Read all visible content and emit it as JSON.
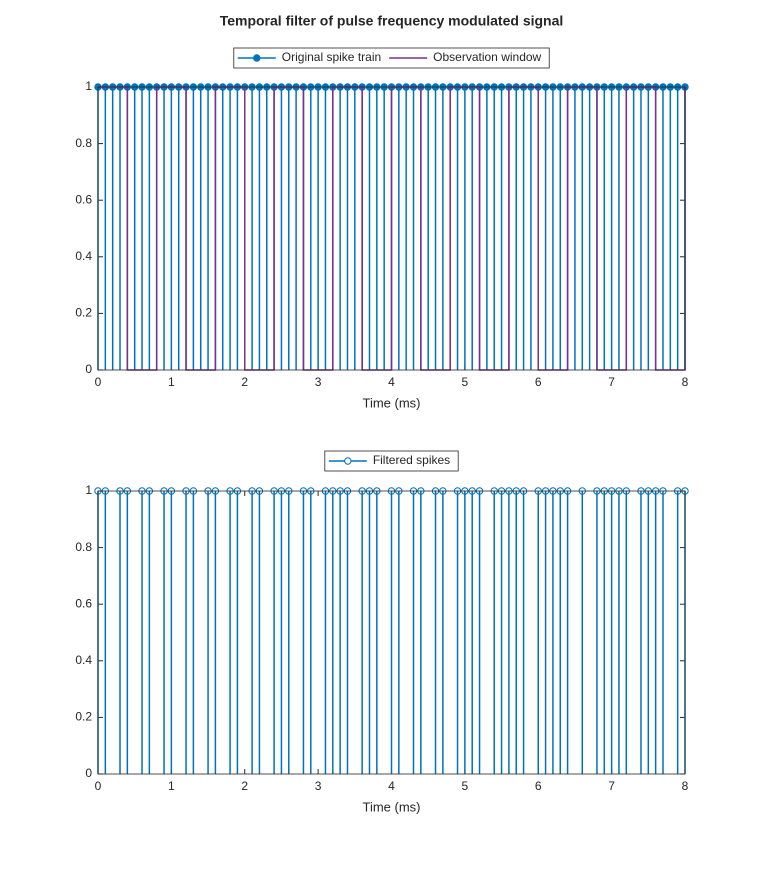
{
  "chart_data": [
    {
      "type": "stem",
      "title": "Temporal filter of pulse frequency modulated signal",
      "xlabel": "Time (ms)",
      "xlim": [
        0,
        8
      ],
      "ylim": [
        0,
        1
      ],
      "xticks": [
        0,
        1,
        2,
        3,
        4,
        5,
        6,
        7,
        8
      ],
      "yticks": [
        0,
        0.2,
        0.4,
        0.6,
        0.8,
        1
      ],
      "series": [
        {
          "name": "Original spike train",
          "color": "#0072bd",
          "marker": "filled",
          "x": [
            0,
            0.1,
            0.2,
            0.3,
            0.4,
            0.5,
            0.6,
            0.7,
            0.8,
            0.9,
            1,
            1.1,
            1.2,
            1.3,
            1.4,
            1.5,
            1.6,
            1.7,
            1.8,
            1.9,
            2,
            2.1,
            2.2,
            2.3,
            2.4,
            2.5,
            2.6,
            2.7,
            2.8,
            2.9,
            3,
            3.1,
            3.2,
            3.3,
            3.4,
            3.5,
            3.6,
            3.7,
            3.8,
            3.9,
            4,
            4.1,
            4.2,
            4.3,
            4.4,
            4.5,
            4.6,
            4.7,
            4.8,
            4.9,
            5,
            5.1,
            5.2,
            5.3,
            5.4,
            5.5,
            5.6,
            5.7,
            5.8,
            5.9,
            6,
            6.1,
            6.2,
            6.3,
            6.4,
            6.5,
            6.6,
            6.7,
            6.8,
            6.9,
            7,
            7.1,
            7.2,
            7.3,
            7.4,
            7.5,
            7.6,
            7.7,
            7.8,
            7.9,
            8
          ],
          "values": [
            1,
            1,
            1,
            1,
            1,
            1,
            1,
            1,
            1,
            1,
            1,
            1,
            1,
            1,
            1,
            1,
            1,
            1,
            1,
            1,
            1,
            1,
            1,
            1,
            1,
            1,
            1,
            1,
            1,
            1,
            1,
            1,
            1,
            1,
            1,
            1,
            1,
            1,
            1,
            1,
            1,
            1,
            1,
            1,
            1,
            1,
            1,
            1,
            1,
            1,
            1,
            1,
            1,
            1,
            1,
            1,
            1,
            1,
            1,
            1,
            1,
            1,
            1,
            1,
            1,
            1,
            1,
            1,
            1,
            1,
            1,
            1,
            1,
            1,
            1,
            1,
            1,
            1,
            1,
            1,
            1
          ]
        },
        {
          "name": "Observation window",
          "color": "#7e2f8e",
          "style": "stairs",
          "x": [
            0,
            0.4,
            0.8,
            1.2,
            1.6,
            2,
            2.4,
            2.8,
            3.2,
            3.6,
            4,
            4.4,
            4.8,
            5.2,
            5.6,
            6,
            6.4,
            6.8,
            7.2,
            7.6,
            8
          ],
          "values": [
            1,
            0,
            1,
            0,
            1,
            0,
            1,
            0,
            1,
            0,
            1,
            0,
            1,
            0,
            1,
            0,
            1,
            0,
            1,
            0,
            1
          ]
        }
      ]
    },
    {
      "type": "stem",
      "xlabel": "Time (ms)",
      "xlim": [
        0,
        8
      ],
      "ylim": [
        0,
        1
      ],
      "xticks": [
        0,
        1,
        2,
        3,
        4,
        5,
        6,
        7,
        8
      ],
      "yticks": [
        0,
        0.2,
        0.4,
        0.6,
        0.8,
        1
      ],
      "series": [
        {
          "name": "Filtered spikes",
          "color": "#0072bd",
          "marker": "open",
          "x": [
            0,
            0.1,
            0.3,
            0.4,
            0.6,
            0.7,
            0.9,
            1,
            1.2,
            1.3,
            1.5,
            1.6,
            1.8,
            1.9,
            2.1,
            2.2,
            2.4,
            2.5,
            2.6,
            2.8,
            2.9,
            3.1,
            3.2,
            3.3,
            3.4,
            3.6,
            3.7,
            3.8,
            4,
            4.1,
            4.3,
            4.4,
            4.6,
            4.7,
            4.9,
            5,
            5.1,
            5.2,
            5.4,
            5.5,
            5.6,
            5.7,
            5.8,
            6,
            6.1,
            6.2,
            6.3,
            6.4,
            6.6,
            6.8,
            6.9,
            7,
            7.1,
            7.2,
            7.4,
            7.5,
            7.6,
            7.7,
            7.9,
            8
          ],
          "values": [
            1,
            1,
            1,
            1,
            1,
            1,
            1,
            1,
            1,
            1,
            1,
            1,
            1,
            1,
            1,
            1,
            1,
            1,
            1,
            1,
            1,
            1,
            1,
            1,
            1,
            1,
            1,
            1,
            1,
            1,
            1,
            1,
            1,
            1,
            1,
            1,
            1,
            1,
            1,
            1,
            1,
            1,
            1,
            1,
            1,
            1,
            1,
            1,
            1,
            1,
            1,
            1,
            1,
            1,
            1,
            1,
            1,
            1,
            1,
            1
          ]
        }
      ]
    }
  ]
}
